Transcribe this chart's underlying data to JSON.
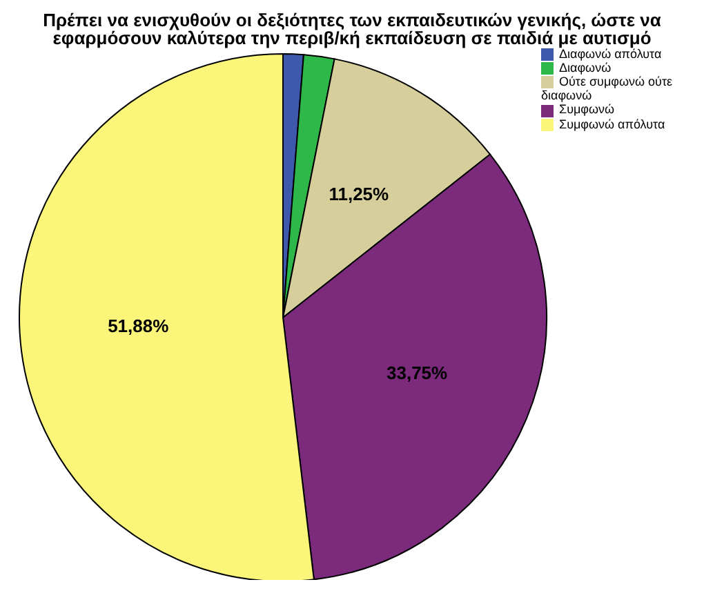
{
  "chart_data": {
    "type": "pie",
    "title": "Πρέπει να ενισχυθούν οι δεξιότητες των εκπαιδευτικών γενικής, ώστε να εφαρμόσουν καλύτερα την περιβ/κή εκπαίδευση σε παιδιά με αυτισμό",
    "categories": [
      "Διαφωνώ απόλυτα",
      "Διαφωνώ",
      "Ούτε συμφωνώ ούτε διαφωνώ",
      "Συμφωνώ",
      "Συμφωνώ απόλυτα"
    ],
    "values": [
      1.25,
      1.88,
      11.25,
      33.75,
      51.88
    ],
    "colors": [
      "#3e58ac",
      "#2fb84a",
      "#d6cf9c",
      "#7b2a7c",
      "#fbf679"
    ],
    "value_labels": [
      null,
      null,
      "11,25%",
      "33,75%",
      "51,88%"
    ],
    "legend": "top right"
  }
}
